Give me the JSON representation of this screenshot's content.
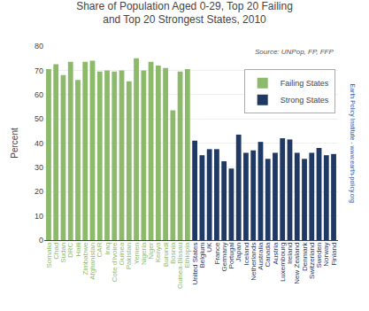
{
  "chart_data": {
    "type": "bar",
    "title": "Share of Population Aged 0-29, Top 20 Failing\nand Top 20 Strongest States, 2010",
    "ylabel": "Percent",
    "annotations": [
      "Source: UNPop, FP, FFP",
      "Earth Policy Institute - www.earth-policy.org"
    ],
    "categories": [
      "Somalia",
      "Chad",
      "Sudan",
      "DRC",
      "Haiti",
      "Zimbabwe",
      "Afghanistan",
      "CAR",
      "Iraq",
      "Cote d'Ivoire",
      "Guinea",
      "Pakistan",
      "Yemen",
      "Nigeria",
      "Niger",
      "Kenya",
      "Burundi",
      "Bosnia",
      "Guinea-Bissau",
      "Ethiopia",
      "United States",
      "Belgium",
      "UK",
      "France",
      "Germany",
      "Portugal",
      "Japan",
      "Iceland",
      "Netherlands",
      "Australia",
      "Canada",
      "Austria",
      "Luxembourg",
      "Ireland",
      "New Zealand",
      "Denmark",
      "Switzerland",
      "Sweden",
      "Norway",
      "Finland"
    ],
    "series": [
      {
        "name": "Failing States",
        "color": "#8db96b",
        "values": [
          70.5,
          72.5,
          68.0,
          73.5,
          66.0,
          73.5,
          74.0,
          69.5,
          70.0,
          69.5,
          70.0,
          65.5,
          75.0,
          70.0,
          73.5,
          72.0,
          71.0,
          53.5,
          69.5,
          70.5,
          null,
          null,
          null,
          null,
          null,
          null,
          null,
          null,
          null,
          null,
          null,
          null,
          null,
          null,
          null,
          null,
          null,
          null,
          null,
          null
        ]
      },
      {
        "name": "Strong States",
        "color": "#1f3864",
        "values": [
          null,
          null,
          null,
          null,
          null,
          null,
          null,
          null,
          null,
          null,
          null,
          null,
          null,
          null,
          null,
          null,
          null,
          null,
          null,
          null,
          41.0,
          35.0,
          37.5,
          37.5,
          32.5,
          29.5,
          43.5,
          36.0,
          37.0,
          40.5,
          33.5,
          36.0,
          42.0,
          41.5,
          36.0,
          33.5,
          36.0,
          38.0,
          35.0,
          35.5
        ]
      }
    ],
    "ylim": [
      0,
      80
    ],
    "yticks": [
      0,
      10,
      20,
      30,
      40,
      50,
      60,
      70,
      80
    ],
    "grid": true,
    "legend": "upper right"
  }
}
